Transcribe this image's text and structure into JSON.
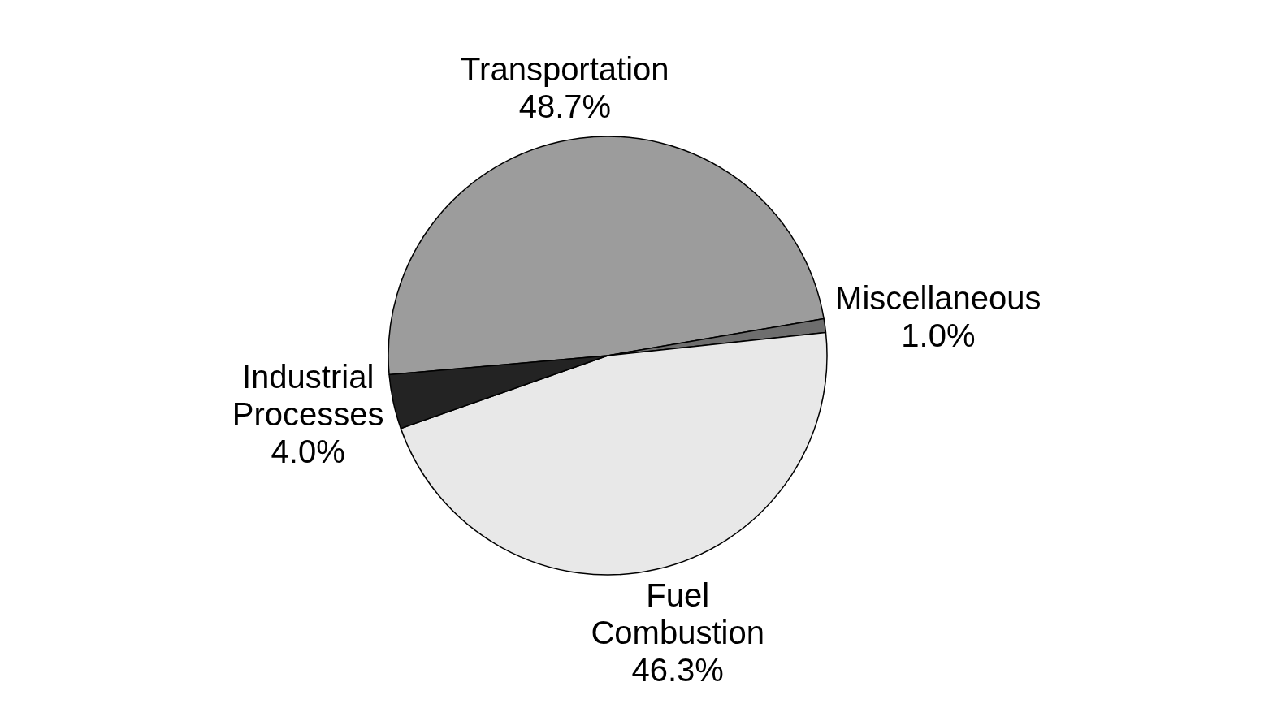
{
  "chart_data": {
    "type": "pie",
    "categories": [
      "Transportation",
      "Miscellaneous",
      "Fuel Combustion",
      "Industrial Processes"
    ],
    "values": [
      48.7,
      1.0,
      46.3,
      4.0
    ],
    "colors": [
      "#9c9c9c",
      "#6e6e6e",
      "#e8e8e8",
      "#232323"
    ],
    "value_labels": [
      "48.7%",
      "1.0%",
      "46.3%",
      "4.0%"
    ],
    "legend": false
  }
}
